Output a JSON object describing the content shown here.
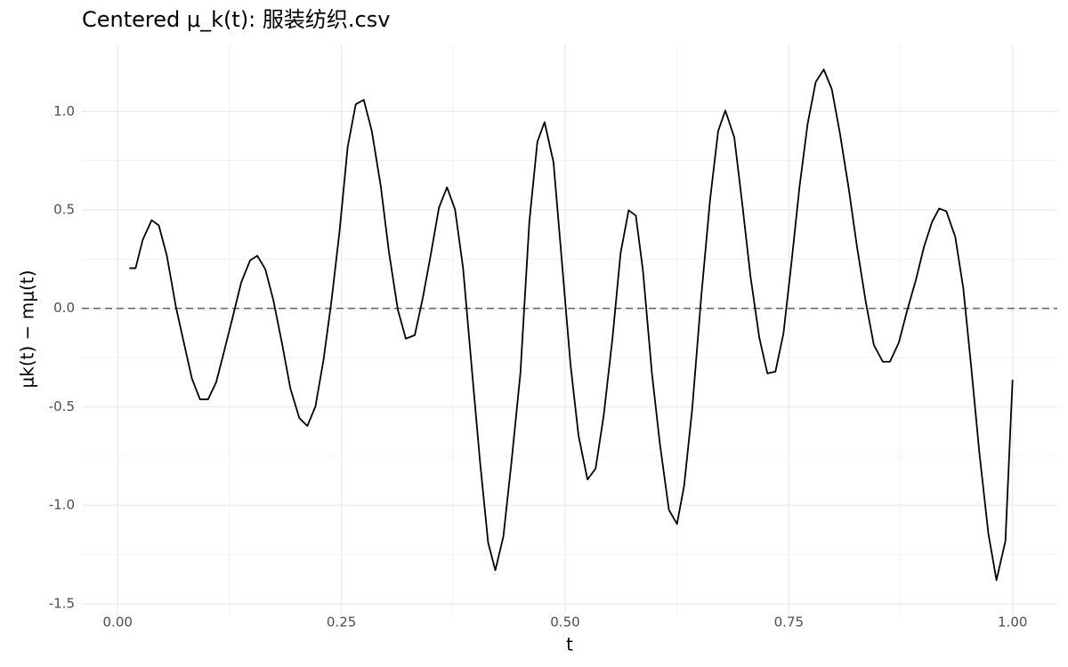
{
  "chart_data": {
    "type": "line",
    "title": "Centered μ_k(t): 服装纺织.csv",
    "xlabel": "t",
    "ylabel": "μk(t) − mμ(t)",
    "x": [
      0.013,
      0.02,
      0.028,
      0.038,
      0.046,
      0.055,
      0.065,
      0.075,
      0.083,
      0.092,
      0.101,
      0.11,
      0.119,
      0.129,
      0.138,
      0.148,
      0.156,
      0.165,
      0.174,
      0.184,
      0.193,
      0.203,
      0.212,
      0.221,
      0.23,
      0.239,
      0.248,
      0.257,
      0.266,
      0.275,
      0.284,
      0.294,
      0.303,
      0.313,
      0.322,
      0.332,
      0.341,
      0.35,
      0.359,
      0.368,
      0.377,
      0.386,
      0.396,
      0.405,
      0.414,
      0.422,
      0.431,
      0.44,
      0.45,
      0.46,
      0.469,
      0.477,
      0.487,
      0.496,
      0.506,
      0.515,
      0.525,
      0.534,
      0.543,
      0.553,
      0.562,
      0.571,
      0.579,
      0.587,
      0.597,
      0.606,
      0.616,
      0.625,
      0.633,
      0.642,
      0.652,
      0.662,
      0.671,
      0.679,
      0.689,
      0.698,
      0.707,
      0.717,
      0.726,
      0.735,
      0.744,
      0.753,
      0.762,
      0.771,
      0.78,
      0.789,
      0.798,
      0.807,
      0.817,
      0.826,
      0.836,
      0.845,
      0.855,
      0.863,
      0.873,
      0.882,
      0.892,
      0.901,
      0.91,
      0.918,
      0.926,
      0.936,
      0.945,
      0.954,
      0.963,
      0.973,
      0.982,
      0.992,
      1.0
    ],
    "series": [
      {
        "color": "#000000",
        "values": [
          0.204,
          0.204,
          0.348,
          0.448,
          0.421,
          0.267,
          0.009,
          -0.195,
          -0.357,
          -0.462,
          -0.462,
          -0.376,
          -0.217,
          -0.036,
          0.131,
          0.244,
          0.267,
          0.199,
          0.041,
          -0.186,
          -0.407,
          -0.557,
          -0.597,
          -0.498,
          -0.262,
          0.041,
          0.394,
          0.819,
          1.036,
          1.059,
          0.9,
          0.62,
          0.29,
          -0.005,
          -0.154,
          -0.136,
          0.054,
          0.276,
          0.511,
          0.615,
          0.502,
          0.204,
          -0.321,
          -0.783,
          -1.19,
          -1.33,
          -1.158,
          -0.783,
          -0.33,
          0.439,
          0.846,
          0.946,
          0.742,
          0.258,
          -0.285,
          -0.647,
          -0.869,
          -0.814,
          -0.548,
          -0.149,
          0.281,
          0.498,
          0.471,
          0.19,
          -0.33,
          -0.692,
          -1.023,
          -1.095,
          -0.9,
          -0.511,
          0.054,
          0.552,
          0.9,
          1.005,
          0.869,
          0.529,
          0.167,
          -0.149,
          -0.33,
          -0.321,
          -0.127,
          0.235,
          0.62,
          0.937,
          1.149,
          1.213,
          1.113,
          0.891,
          0.606,
          0.317,
          0.032,
          -0.186,
          -0.271,
          -0.271,
          -0.172,
          -0.014,
          0.145,
          0.312,
          0.439,
          0.507,
          0.493,
          0.362,
          0.1,
          -0.308,
          -0.738,
          -1.145,
          -1.38,
          -1.181,
          -0.362
        ]
      }
    ],
    "hline": 0,
    "xlim": [
      -0.04,
      1.05
    ],
    "ylim": [
      -1.55,
      1.34
    ],
    "xticks": [
      {
        "value": 0,
        "label": "0.00"
      },
      0.25,
      {
        "value": 0.5,
        "label": "0.50"
      },
      0.75,
      {
        "value": 1,
        "label": "1.00"
      }
    ],
    "yticks": [
      -1.5,
      {
        "value": -1,
        "label": "-1.0"
      },
      -0.5,
      {
        "value": 0,
        "label": "0.0"
      },
      0.5,
      {
        "value": 1,
        "label": "1.0"
      }
    ],
    "grid": true
  }
}
